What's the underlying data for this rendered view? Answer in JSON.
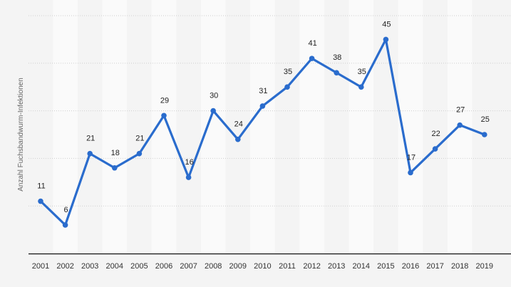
{
  "chart_data": {
    "type": "line",
    "title": "",
    "xlabel": "",
    "ylabel": "Anzahl Fuchsbandwurm-Infektionen",
    "categories": [
      "2001",
      "2002",
      "2003",
      "2004",
      "2005",
      "2006",
      "2007",
      "2008",
      "2009",
      "2010",
      "2011",
      "2012",
      "2013",
      "2014",
      "2015",
      "2016",
      "2017",
      "2018",
      "2019"
    ],
    "values": [
      11,
      6,
      21,
      18,
      21,
      29,
      16,
      30,
      24,
      31,
      35,
      41,
      38,
      35,
      45,
      17,
      22,
      27,
      25
    ],
    "ylim": [
      0,
      50
    ],
    "grid": true,
    "line_color": "#2a6ccd",
    "data_labels": true
  }
}
